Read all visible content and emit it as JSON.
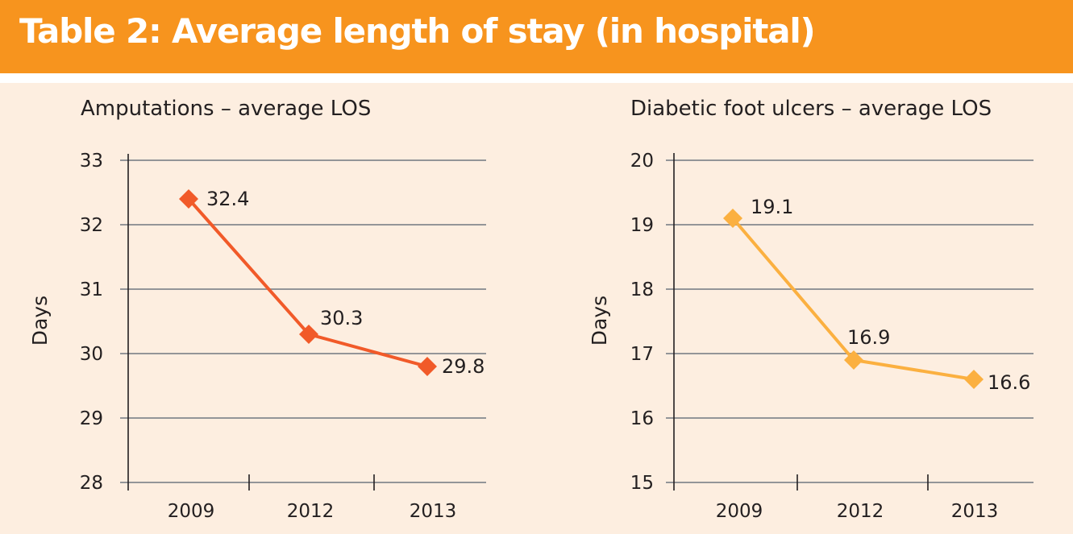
{
  "header": {
    "title": "Table 2: Average length of stay (in hospital)"
  },
  "colors": {
    "header_bg": "#f7941e",
    "page_bg": "#fdeee0",
    "text": "#231f20",
    "gridline": "#939598",
    "axis": "#231f20"
  },
  "chart_data": [
    {
      "type": "line",
      "title": "Amputations – average LOS",
      "xlabel": "",
      "ylabel": "Days",
      "categories": [
        "2009",
        "2012",
        "2013"
      ],
      "series": [
        {
          "name": "Amputations",
          "color": "#f15a29",
          "values": [
            32.4,
            30.3,
            29.8
          ],
          "labels": [
            "32.4",
            "30.3",
            "29.8"
          ]
        }
      ],
      "ylim": [
        28,
        33
      ],
      "yticks": [
        "28",
        "29",
        "30",
        "31",
        "32",
        "33"
      ],
      "grid": true,
      "markers": "diamond",
      "legend": "none"
    },
    {
      "type": "line",
      "title": "Diabetic foot ulcers – average LOS",
      "xlabel": "",
      "ylabel": "Days",
      "categories": [
        "2009",
        "2012",
        "2013"
      ],
      "series": [
        {
          "name": "Diabetic foot ulcers",
          "color": "#fbb040",
          "values": [
            19.1,
            16.9,
            16.6
          ],
          "labels": [
            "19.1",
            "16.9",
            "16.6"
          ]
        }
      ],
      "ylim": [
        15,
        20
      ],
      "yticks": [
        "15",
        "16",
        "17",
        "18",
        "19",
        "20"
      ],
      "grid": true,
      "markers": "diamond",
      "legend": "none"
    }
  ]
}
